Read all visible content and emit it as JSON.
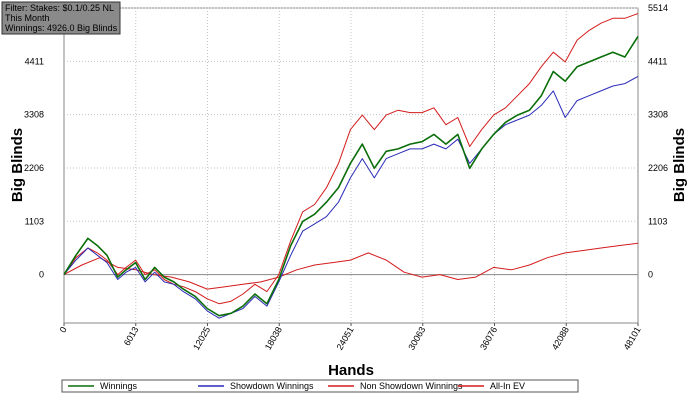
{
  "filter_box": {
    "lines": [
      "Filter: Stakes: $0.1/0.25 NL",
      "This Month",
      "Winnings: 4926.0 Big Blinds"
    ]
  },
  "chart_data": {
    "type": "line",
    "xlabel": "Hands",
    "ylabel_left": "Big Blinds",
    "ylabel_right": "Big Blinds",
    "xlim": [
      0,
      48101
    ],
    "ylim": [
      -1000,
      5514
    ],
    "x_ticks": [
      0,
      6013,
      12025,
      18038,
      24051,
      30063,
      36076,
      42088,
      48101
    ],
    "y_ticks": [
      0,
      1103,
      2206,
      3308,
      4411,
      5514
    ],
    "grid": true,
    "legend_position": "bottom",
    "series": [
      {
        "name": "Winnings",
        "color": "#0a6e0a",
        "x": [
          0,
          1000,
          2000,
          2800,
          3600,
          4500,
          5200,
          6000,
          6800,
          7600,
          8400,
          9200,
          10000,
          11000,
          12000,
          13000,
          14000,
          15000,
          16000,
          17000,
          18000,
          19000,
          20000,
          21000,
          22000,
          23000,
          24000,
          25000,
          26000,
          27000,
          28000,
          29000,
          30000,
          31000,
          32000,
          33000,
          34000,
          35000,
          36000,
          37000,
          38000,
          39000,
          40000,
          41000,
          42000,
          43000,
          44000,
          45000,
          46000,
          47000,
          48101
        ],
        "y": [
          0,
          400,
          750,
          600,
          400,
          -50,
          100,
          250,
          -100,
          150,
          -50,
          -150,
          -300,
          -450,
          -700,
          -850,
          -800,
          -650,
          -400,
          -600,
          -100,
          600,
          1100,
          1250,
          1500,
          1800,
          2300,
          2700,
          2200,
          2550,
          2600,
          2700,
          2750,
          2900,
          2700,
          2900,
          2200,
          2600,
          2900,
          3150,
          3300,
          3400,
          3700,
          4200,
          4000,
          4300,
          4400,
          4500,
          4600,
          4500,
          4926
        ]
      },
      {
        "name": "Showdown Winnings",
        "color": "#2b2bb8",
        "x": [
          0,
          1000,
          2000,
          2800,
          3600,
          4500,
          5200,
          6000,
          6800,
          7600,
          8400,
          9200,
          10000,
          11000,
          12000,
          13000,
          14000,
          15000,
          16000,
          17000,
          18000,
          19000,
          20000,
          21000,
          22000,
          23000,
          24000,
          25000,
          26000,
          27000,
          28000,
          29000,
          30000,
          31000,
          32000,
          33000,
          34000,
          35000,
          36000,
          37000,
          38000,
          39000,
          40000,
          41000,
          42000,
          43000,
          44000,
          45000,
          46000,
          47000,
          48101
        ],
        "y": [
          0,
          300,
          550,
          400,
          250,
          -100,
          50,
          150,
          -150,
          50,
          -150,
          -200,
          -350,
          -500,
          -750,
          -900,
          -800,
          -700,
          -450,
          -650,
          -150,
          400,
          900,
          1050,
          1200,
          1500,
          2000,
          2400,
          2000,
          2400,
          2500,
          2600,
          2600,
          2700,
          2600,
          2800,
          2300,
          2600,
          2900,
          3100,
          3200,
          3300,
          3500,
          3800,
          3250,
          3600,
          3700,
          3800,
          3900,
          3950,
          4100
        ]
      },
      {
        "name": "Non Showdown Winnings",
        "color": "#d41c1c",
        "x": [
          0,
          1000,
          2000,
          2800,
          3600,
          4500,
          5200,
          6000,
          6800,
          7600,
          8400,
          9200,
          10000,
          11000,
          12000,
          13000,
          14000,
          15000,
          16000,
          17000,
          18000,
          19000,
          20000,
          21000,
          22000,
          23000,
          24000,
          25000,
          26000,
          27000,
          28000,
          29000,
          30000,
          31000,
          32000,
          33000,
          34000,
          35000,
          36000,
          37000,
          38000,
          39000,
          40000,
          41000,
          42000,
          43000,
          44000,
          45000,
          46000,
          47000,
          48101
        ],
        "y": [
          0,
          350,
          550,
          450,
          300,
          0,
          150,
          300,
          0,
          100,
          -100,
          -200,
          -250,
          -350,
          -500,
          -600,
          -550,
          -400,
          -200,
          -350,
          0,
          700,
          1300,
          1450,
          1800,
          2300,
          3000,
          3300,
          3000,
          3300,
          3400,
          3350,
          3350,
          3450,
          3100,
          3250,
          2650,
          3000,
          3300,
          3450,
          3700,
          3950,
          4300,
          4600,
          4400,
          4850,
          5050,
          5200,
          5300,
          5300,
          5400
        ]
      },
      {
        "name": "All-In EV",
        "color": "#d41c1c",
        "x": [
          0,
          1500,
          3000,
          4500,
          6000,
          7500,
          9000,
          10500,
          12000,
          13500,
          15000,
          16500,
          18000,
          19500,
          21000,
          22500,
          24000,
          25500,
          27000,
          28500,
          30000,
          31500,
          33000,
          34500,
          36000,
          37500,
          39000,
          40500,
          42000,
          43500,
          45000,
          46500,
          48101
        ],
        "y": [
          0,
          200,
          350,
          150,
          100,
          0,
          -50,
          -150,
          -300,
          -250,
          -200,
          -150,
          -50,
          100,
          200,
          250,
          300,
          450,
          300,
          50,
          -50,
          0,
          -100,
          -50,
          150,
          100,
          200,
          350,
          450,
          500,
          550,
          600,
          650
        ]
      }
    ]
  }
}
